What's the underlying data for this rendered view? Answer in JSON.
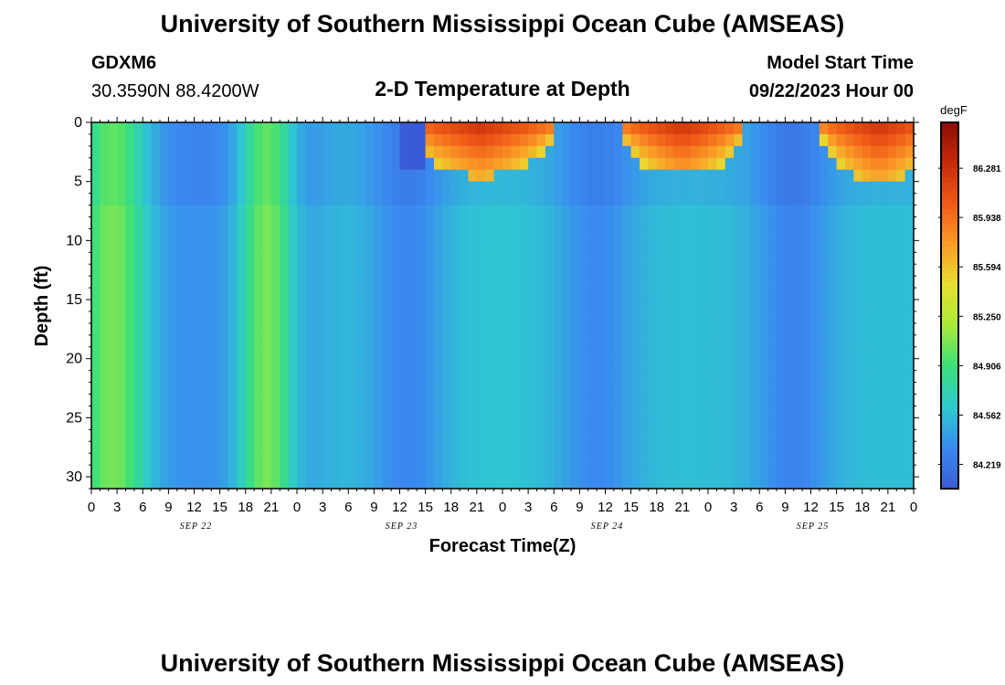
{
  "header": {
    "title": "University of Southern Mississippi Ocean Cube (AMSEAS)",
    "station_id": "GDXM6",
    "station_coords": "30.3590N  88.4200W",
    "subtitle": "2-D Temperature at Depth",
    "model_start_label": "Model Start Time",
    "model_start_value": "09/22/2023 Hour 00"
  },
  "footer": {
    "title": "University of Southern Mississippi Ocean Cube (AMSEAS)"
  },
  "chart_data": {
    "type": "heatmap",
    "title": "2-D Temperature at Depth",
    "xlabel": "Forecast Time(Z)",
    "ylabel": "Depth (ft)",
    "x_ticks": [
      "0",
      "3",
      "6",
      "9",
      "12",
      "15",
      "18",
      "21",
      "0",
      "3",
      "6",
      "9",
      "12",
      "15",
      "18",
      "21",
      "0",
      "3",
      "6",
      "9",
      "12",
      "15",
      "18",
      "21",
      "0",
      "3",
      "6",
      "9",
      "12",
      "15",
      "18",
      "21",
      "0"
    ],
    "x_range_hours": [
      0,
      96
    ],
    "date_labels": [
      "SEP 22",
      "SEP 23",
      "SEP 24",
      "SEP 25"
    ],
    "y_ticks": [
      "0",
      "5",
      "10",
      "15",
      "20",
      "25",
      "30"
    ],
    "y_range_ft": [
      0,
      31
    ],
    "colorbar": {
      "unit": "degF",
      "range": [
        84.05,
        86.6
      ],
      "ticks": [
        "86.281",
        "85.938",
        "85.594",
        "85.250",
        "84.906",
        "84.562",
        "84.219"
      ]
    },
    "colors": {
      "scale": [
        "#3b5bd6",
        "#3a8af0",
        "#2ec9d0",
        "#3ae07a",
        "#a8ea3a",
        "#e6e030",
        "#fb9c28",
        "#f05a18",
        "#c82a0a",
        "#8a0d05"
      ]
    }
  }
}
